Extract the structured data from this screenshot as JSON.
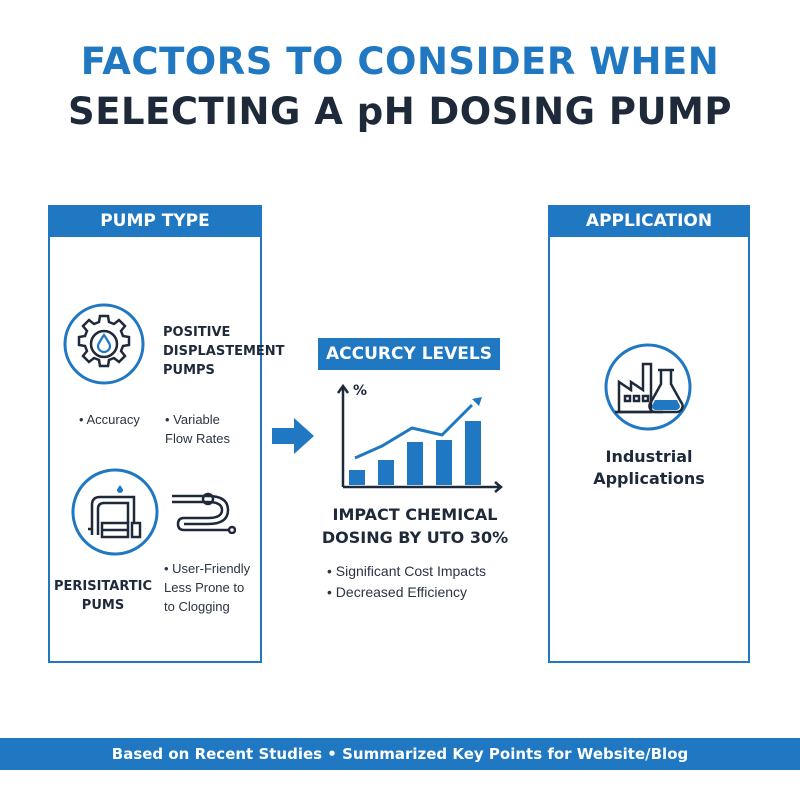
{
  "title": {
    "line1": "FACTORS TO CONSIDER WHEN",
    "line2": "SELECTING A pH DOSING PUMP"
  },
  "colors": {
    "accent": "#1f78c1",
    "dark": "#1e2a3a"
  },
  "pump_type": {
    "header": "PUMP TYPE",
    "positive": {
      "name_lines": [
        "POSITIVE",
        "DISPLASTEMENT",
        "PUMPS"
      ],
      "icon": "gear-with-droplet-icon",
      "bullet1": "• Accuracy",
      "bullet2_lines": [
        "• Variable",
        "Flow Rates"
      ]
    },
    "peristaltic": {
      "name_lines": [
        "PERISITARTIC",
        "PUMS"
      ],
      "icon": "pump-pipes-icon",
      "secondary_icon": "tubing-icon",
      "bullet_lines": [
        "• User-Friendly",
        "Less Prone to",
        "to Clogging"
      ]
    }
  },
  "arrow_icon": "right-arrow-icon",
  "accuracy": {
    "header": "ACCURCY LEVELS",
    "chart_axis_label": "%",
    "impact_lines": [
      "IMPACT CHEMICAL",
      "DOSING BY UTO 30%"
    ],
    "bullets": [
      "• Significant Cost Impacts",
      "• Decreased Efficiency"
    ]
  },
  "application": {
    "header": "APPLICATION",
    "icon": "factory-flask-icon",
    "label_lines": [
      "Industrial",
      "Applications"
    ]
  },
  "footer": "Based on Recent Studies • Summarized Key Points for Website/Blog"
}
